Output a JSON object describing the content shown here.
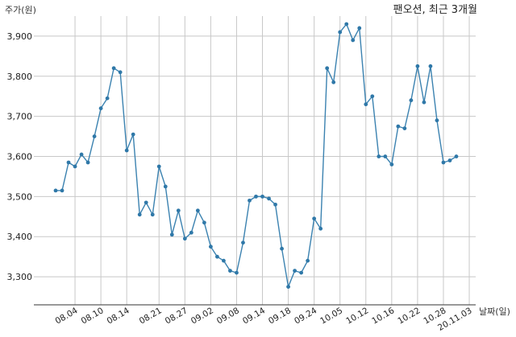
{
  "chart_data": {
    "type": "line",
    "title": "팬오션, 최근 3개월",
    "ylabel": "주가(원)",
    "xlabel": "날짜(일)",
    "ylim": [
      3230,
      3950
    ],
    "yticks": [
      3300,
      3400,
      3500,
      3600,
      3700,
      3800,
      3900
    ],
    "ytick_labels": [
      "3,300",
      "3,400",
      "3,500",
      "3,600",
      "3,700",
      "3,800",
      "3,900"
    ],
    "grid": true,
    "xtick_labels": [
      {
        "label": "08.04",
        "index": 3
      },
      {
        "label": "08.10",
        "index": 7
      },
      {
        "label": "08.14",
        "index": 11
      },
      {
        "label": "08.21",
        "index": 16
      },
      {
        "label": "08.27",
        "index": 20
      },
      {
        "label": "09.02",
        "index": 24
      },
      {
        "label": "09.08",
        "index": 28
      },
      {
        "label": "09.14",
        "index": 32
      },
      {
        "label": "09.18",
        "index": 36
      },
      {
        "label": "09.24",
        "index": 40
      },
      {
        "label": "10.05",
        "index": 44
      },
      {
        "label": "10.12",
        "index": 48
      },
      {
        "label": "10.16",
        "index": 52
      },
      {
        "label": "10.22",
        "index": 56
      },
      {
        "label": "10.28",
        "index": 60
      },
      {
        "label": "20.11.03",
        "index": 64
      }
    ],
    "values": [
      3515,
      3515,
      3585,
      3575,
      3605,
      3585,
      3650,
      3720,
      3745,
      3820,
      3810,
      3615,
      3655,
      3455,
      3485,
      3455,
      3575,
      3525,
      3405,
      3465,
      3395,
      3410,
      3465,
      3435,
      3375,
      3350,
      3340,
      3315,
      3310,
      3385,
      3490,
      3500,
      3500,
      3495,
      3480,
      3370,
      3275,
      3315,
      3310,
      3340,
      3445,
      3420,
      3820,
      3785,
      3910,
      3930,
      3890,
      3920,
      3730,
      3750,
      3600,
      3600,
      3580,
      3675,
      3670,
      3740,
      3825,
      3735,
      3825,
      3690,
      3585,
      3590,
      3600
    ]
  }
}
